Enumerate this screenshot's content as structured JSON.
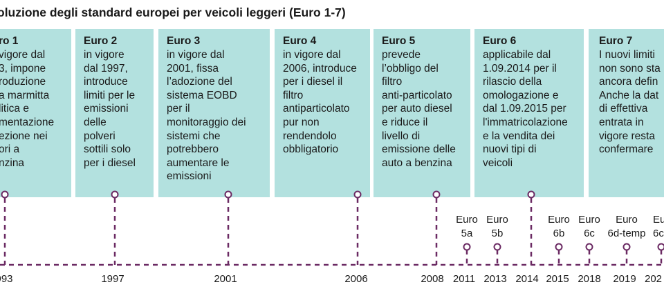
{
  "title": "oluzione degli standard europei per veicoli leggeri (Euro 1-7)",
  "colors": {
    "card_bg": "#b3e1df",
    "line": "#6b2a63",
    "text": "#1a1a1a"
  },
  "cards": [
    {
      "heading": "ro 1",
      "body": "vigore dal\n3, impone\nroduzione\na marmitta\nlitica e\nmentazione\nezione nei\nori a\nnzina"
    },
    {
      "heading": "Euro 2",
      "body": "in vigore\ndal 1997,\nintroduce\nlimiti per le\nemissioni\ndelle\npolveri\nsottili solo\nper i diesel"
    },
    {
      "heading": "Euro 3",
      "body": "in vigore dal\n2001, fissa\nl’adozione del\nsistema EOBD\nper il\nmonitoraggio dei\nsistemi che\npotrebbero\naumentare le\nemissioni"
    },
    {
      "heading": "Euro 4",
      "body": "in vigore dal\n2006, introduce\nper i diesel il\nfiltro\nantiparticolato\npur non\nrendendolo\nobbligatorio"
    },
    {
      "heading": "Euro 5",
      "body": "prevede\nl’obbligo del\nfiltro\nanti-particolato\nper auto diesel\ne riduce il\nlivello di\nemissione delle\nauto a benzina"
    },
    {
      "heading": "Euro 6",
      "body": "applicabile dal\n1.09.2014 per il\nrilascio della\nomologazione e\ndal 1.09.2015 per\nl'immatricolazione\ne la vendita dei\nnuovi tipi di\nveicoli"
    },
    {
      "heading": "Euro 7",
      "body": "I nuovi limiti\nnon sono sta\nancora defin\nAnche la dat\ndi effettiva\nentrata in\nvigore resta\nconfermare"
    }
  ],
  "minor_labels": [
    "Euro\n5a",
    "Euro\n5b",
    "Euro\n6b",
    "Euro\n6c",
    "Euro\n6d-temp",
    "Eur\n6c"
  ],
  "years": [
    "993",
    "1997",
    "2001",
    "2006",
    "2008",
    "2011",
    "2013",
    "2014",
    "2015",
    "2018",
    "2019",
    "202"
  ]
}
